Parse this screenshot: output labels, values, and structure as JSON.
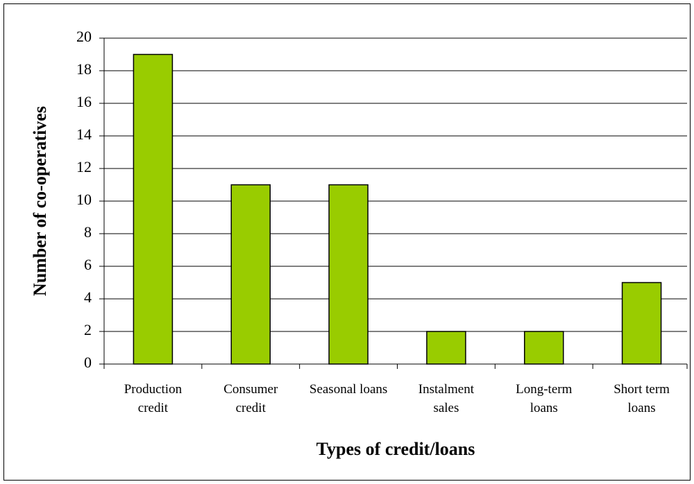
{
  "chart_data": {
    "type": "bar",
    "x_label": "Types of credit/loans",
    "y_label": "Number of co-operatives",
    "categories": [
      "Production credit",
      "Consumer credit",
      "Seasonal loans",
      "Instalment sales",
      "Long-term loans",
      "Short term loans"
    ],
    "values": [
      19,
      11,
      11,
      2,
      2,
      5
    ],
    "color": "#99cc00",
    "ylim": [
      0,
      20
    ],
    "yticks": [
      0,
      2,
      4,
      6,
      8,
      10,
      12,
      14,
      16,
      18,
      20
    ],
    "grid": true
  }
}
